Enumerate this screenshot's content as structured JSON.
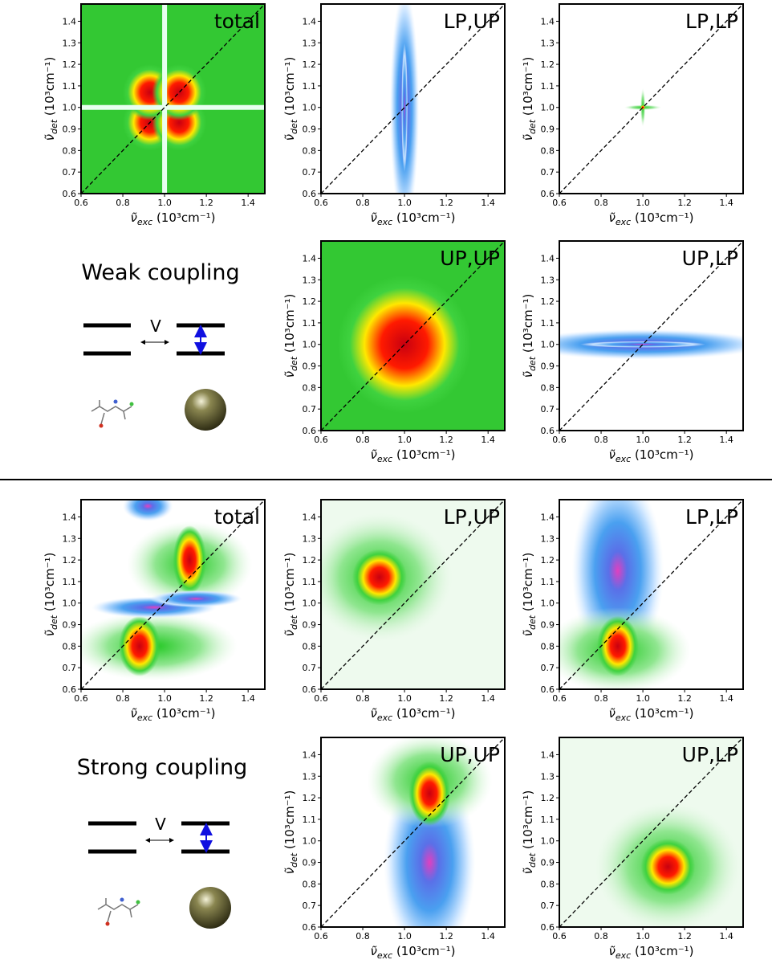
{
  "diagrams": [
    {
      "title": "Weak coupling",
      "coupling": "V"
    },
    {
      "title": "Strong coupling",
      "coupling": "V"
    }
  ],
  "chart_data": [
    {
      "type": "contour",
      "label": "total",
      "xlabel": {
        "symbol": "ν̃",
        "sub": "exc",
        "unit": " (10³cm⁻¹)"
      },
      "ylabel": {
        "symbol": "ν̃",
        "sub": "det",
        "unit": " (10³cm⁻¹)"
      },
      "xlim": [
        0.6,
        1.48
      ],
      "ylim": [
        0.6,
        1.48
      ],
      "xticks": [
        0.6,
        0.8,
        {
          "value": 1,
          "label": "1.0"
        },
        1.2,
        1.4
      ],
      "yticks": [
        0.6,
        0.7,
        0.8,
        0.9,
        {
          "value": 1,
          "label": "1.0"
        },
        1.1,
        1.2,
        1.3,
        1.4
      ],
      "diagonal": true
    },
    {
      "type": "contour",
      "label": "LP,UP",
      "xlabel": {
        "symbol": "ν̃",
        "sub": "exc",
        "unit": " (10³cm⁻¹)"
      },
      "ylabel": {
        "symbol": "ν̃",
        "sub": "det",
        "unit": " (10³cm⁻¹)"
      },
      "xlim": [
        0.6,
        1.48
      ],
      "ylim": [
        0.6,
        1.48
      ],
      "xticks": [
        0.6,
        0.8,
        {
          "value": 1,
          "label": "1.0"
        },
        1.2,
        1.4
      ],
      "yticks": [
        0.6,
        0.7,
        0.8,
        0.9,
        {
          "value": 1,
          "label": "1.0"
        },
        1.1,
        1.2,
        1.3,
        1.4
      ],
      "diagonal": true
    },
    {
      "type": "contour",
      "label": "LP,LP",
      "xlabel": {
        "symbol": "ν̃",
        "sub": "exc",
        "unit": " (10³cm⁻¹)"
      },
      "ylabel": {
        "symbol": "ν̃",
        "sub": "det",
        "unit": " (10³cm⁻¹)"
      },
      "xlim": [
        0.6,
        1.48
      ],
      "ylim": [
        0.6,
        1.48
      ],
      "xticks": [
        0.6,
        0.8,
        {
          "value": 1,
          "label": "1.0"
        },
        1.2,
        1.4
      ],
      "yticks": [
        0.6,
        0.7,
        0.8,
        0.9,
        {
          "value": 1,
          "label": "1.0"
        },
        1.1,
        1.2,
        1.3,
        1.4
      ],
      "diagonal": true
    },
    {
      "type": "contour",
      "label": "UP,UP",
      "xlabel": {
        "symbol": "ν̃",
        "sub": "exc",
        "unit": " (10³cm⁻¹)"
      },
      "ylabel": {
        "symbol": "ν̃",
        "sub": "det",
        "unit": " (10³cm⁻¹)"
      },
      "xlim": [
        0.6,
        1.48
      ],
      "ylim": [
        0.6,
        1.48
      ],
      "xticks": [
        0.6,
        0.8,
        {
          "value": 1,
          "label": "1.0"
        },
        1.2,
        1.4
      ],
      "yticks": [
        0.6,
        0.7,
        0.8,
        0.9,
        {
          "value": 1,
          "label": "1.0"
        },
        1.1,
        1.2,
        1.3,
        1.4
      ],
      "diagonal": true
    },
    {
      "type": "contour",
      "label": "UP,LP",
      "xlabel": {
        "symbol": "ν̃",
        "sub": "exc",
        "unit": " (10³cm⁻¹)"
      },
      "ylabel": {
        "symbol": "ν̃",
        "sub": "det",
        "unit": " (10³cm⁻¹)"
      },
      "xlim": [
        0.6,
        1.48
      ],
      "ylim": [
        0.6,
        1.48
      ],
      "xticks": [
        0.6,
        0.8,
        {
          "value": 1,
          "label": "1.0"
        },
        1.2,
        1.4
      ],
      "yticks": [
        0.6,
        0.7,
        0.8,
        0.9,
        {
          "value": 1,
          "label": "1.0"
        },
        1.1,
        1.2,
        1.3,
        1.4
      ],
      "diagonal": true
    },
    {
      "type": "contour",
      "label": "total",
      "xlabel": {
        "symbol": "ν̃",
        "sub": "exc",
        "unit": " (10³cm⁻¹)"
      },
      "ylabel": {
        "symbol": "ν̃",
        "sub": "det",
        "unit": " (10³cm⁻¹)"
      },
      "xlim": [
        0.6,
        1.48
      ],
      "ylim": [
        0.6,
        1.48
      ],
      "xticks": [
        0.6,
        0.8,
        {
          "value": 1,
          "label": "1.0"
        },
        1.2,
        1.4
      ],
      "yticks": [
        0.6,
        0.7,
        0.8,
        0.9,
        {
          "value": 1,
          "label": "1.0"
        },
        1.1,
        1.2,
        1.3,
        1.4
      ],
      "diagonal": true
    },
    {
      "type": "contour",
      "label": "LP,UP",
      "xlabel": {
        "symbol": "ν̃",
        "sub": "exc",
        "unit": " (10³cm⁻¹)"
      },
      "ylabel": {
        "symbol": "ν̃",
        "sub": "det",
        "unit": " (10³cm⁻¹)"
      },
      "xlim": [
        0.6,
        1.48
      ],
      "ylim": [
        0.6,
        1.48
      ],
      "xticks": [
        0.6,
        0.8,
        {
          "value": 1,
          "label": "1.0"
        },
        1.2,
        1.4
      ],
      "yticks": [
        0.6,
        0.7,
        0.8,
        0.9,
        {
          "value": 1,
          "label": "1.0"
        },
        1.1,
        1.2,
        1.3,
        1.4
      ],
      "diagonal": true
    },
    {
      "type": "contour",
      "label": "LP,LP",
      "xlabel": {
        "symbol": "ν̃",
        "sub": "exc",
        "unit": " (10³cm⁻¹)"
      },
      "ylabel": {
        "symbol": "ν̃",
        "sub": "det",
        "unit": " (10³cm⁻¹)"
      },
      "xlim": [
        0.6,
        1.48
      ],
      "ylim": [
        0.6,
        1.48
      ],
      "xticks": [
        0.6,
        0.8,
        {
          "value": 1,
          "label": "1.0"
        },
        1.2,
        1.4
      ],
      "yticks": [
        0.6,
        0.7,
        0.8,
        0.9,
        {
          "value": 1,
          "label": "1.0"
        },
        1.1,
        1.2,
        1.3,
        1.4
      ],
      "diagonal": true
    },
    {
      "type": "contour",
      "label": "UP,UP",
      "xlabel": {
        "symbol": "ν̃",
        "sub": "exc",
        "unit": " (10³cm⁻¹)"
      },
      "ylabel": {
        "symbol": "ν̃",
        "sub": "det",
        "unit": " (10³cm⁻¹)"
      },
      "xlim": [
        0.6,
        1.48
      ],
      "ylim": [
        0.6,
        1.48
      ],
      "xticks": [
        0.6,
        0.8,
        {
          "value": 1,
          "label": "1.0"
        },
        1.2,
        1.4
      ],
      "yticks": [
        0.6,
        0.7,
        0.8,
        0.9,
        {
          "value": 1,
          "label": "1.0"
        },
        1.1,
        1.2,
        1.3,
        1.4
      ],
      "diagonal": true
    },
    {
      "type": "contour",
      "label": "UP,LP",
      "xlabel": {
        "symbol": "ν̃",
        "sub": "exc",
        "unit": " (10³cm⁻¹)"
      },
      "ylabel": {
        "symbol": "ν̃",
        "sub": "det",
        "unit": " (10³cm⁻¹)"
      },
      "xlim": [
        0.6,
        1.48
      ],
      "ylim": [
        0.6,
        1.48
      ],
      "xticks": [
        0.6,
        0.8,
        {
          "value": 1,
          "label": "1.0"
        },
        1.2,
        1.4
      ],
      "yticks": [
        0.6,
        0.7,
        0.8,
        0.9,
        {
          "value": 1,
          "label": "1.0"
        },
        1.1,
        1.2,
        1.3,
        1.4
      ],
      "diagonal": true
    }
  ]
}
